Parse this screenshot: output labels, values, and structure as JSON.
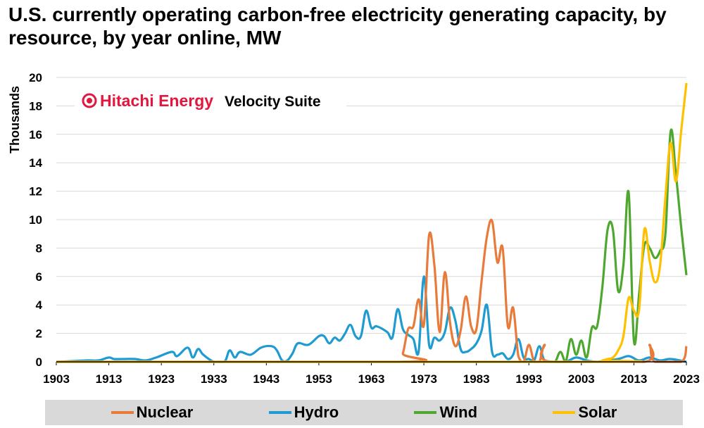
{
  "title": "U.S. currently operating carbon-free electricity generating capacity, by resource, by year online, MW",
  "brand": {
    "name": "Hitachi Energy",
    "product": "Velocity Suite",
    "brand_color": "#e3173e"
  },
  "chart_data": {
    "type": "line",
    "title": "U.S. currently operating carbon-free electricity generating capacity, by resource, by year online, MW",
    "ylabel": "Thousands",
    "xlabel": "",
    "xlim": [
      1903,
      2023
    ],
    "ylim": [
      0,
      20
    ],
    "x_ticks": [
      1903,
      1913,
      1923,
      1933,
      1943,
      1953,
      1963,
      1973,
      1983,
      1993,
      2003,
      2013,
      2023
    ],
    "y_ticks": [
      0,
      2,
      4,
      6,
      8,
      10,
      12,
      14,
      16,
      18,
      20
    ],
    "grid": "horizontal",
    "legend_position": "bottom",
    "series": [
      {
        "name": "Nuclear",
        "color": "#e87a3a",
        "points": [
          [
            1903,
            0
          ],
          [
            1968,
            0
          ],
          [
            1969,
            0.6
          ],
          [
            1970,
            2.3
          ],
          [
            1971,
            2.5
          ],
          [
            1972,
            4.4
          ],
          [
            1973,
            2.6
          ],
          [
            1974,
            8.9
          ],
          [
            1975,
            6.8
          ],
          [
            1976,
            2.1
          ],
          [
            1977,
            6.3
          ],
          [
            1978,
            2.7
          ],
          [
            1979,
            1.1
          ],
          [
            1980,
            2.2
          ],
          [
            1981,
            4.6
          ],
          [
            1982,
            2.5
          ],
          [
            1983,
            2.3
          ],
          [
            1984,
            5.7
          ],
          [
            1985,
            8.8
          ],
          [
            1986,
            9.9
          ],
          [
            1987,
            7.0
          ],
          [
            1988,
            8.0
          ],
          [
            1989,
            2.5
          ],
          [
            1990,
            3.8
          ],
          [
            1991,
            0.4
          ],
          [
            1992,
            0
          ],
          [
            1993,
            1.2
          ],
          [
            1994,
            0
          ],
          [
            1995,
            0
          ],
          [
            1996,
            1.2
          ],
          [
            1997,
            0
          ],
          [
            2015,
            0
          ],
          [
            2016,
            1.2
          ],
          [
            2017,
            0
          ],
          [
            2022,
            0
          ],
          [
            2023,
            1.1
          ]
        ]
      },
      {
        "name": "Hydro",
        "color": "#1f9bd1",
        "points": [
          [
            1903,
            0
          ],
          [
            1906,
            0.05
          ],
          [
            1909,
            0.1
          ],
          [
            1911,
            0.1
          ],
          [
            1913,
            0.3
          ],
          [
            1914,
            0.2
          ],
          [
            1916,
            0.2
          ],
          [
            1918,
            0.2
          ],
          [
            1920,
            0.1
          ],
          [
            1922,
            0.3
          ],
          [
            1925,
            0.7
          ],
          [
            1926,
            0.4
          ],
          [
            1928,
            1.0
          ],
          [
            1929,
            0.3
          ],
          [
            1930,
            0.9
          ],
          [
            1931,
            0.5
          ],
          [
            1933,
            0
          ],
          [
            1935,
            0
          ],
          [
            1936,
            0.8
          ],
          [
            1937,
            0.3
          ],
          [
            1938,
            0.7
          ],
          [
            1940,
            0.5
          ],
          [
            1942,
            1.0
          ],
          [
            1944,
            1.1
          ],
          [
            1945,
            0.8
          ],
          [
            1946,
            0.1
          ],
          [
            1947,
            0.1
          ],
          [
            1948,
            0.6
          ],
          [
            1949,
            1.3
          ],
          [
            1951,
            1.2
          ],
          [
            1953,
            1.8
          ],
          [
            1954,
            1.8
          ],
          [
            1955,
            1.3
          ],
          [
            1956,
            1.7
          ],
          [
            1957,
            1.5
          ],
          [
            1958,
            2.0
          ],
          [
            1959,
            2.6
          ],
          [
            1960,
            1.8
          ],
          [
            1961,
            1.8
          ],
          [
            1962,
            3.6
          ],
          [
            1963,
            2.4
          ],
          [
            1964,
            2.5
          ],
          [
            1966,
            2.1
          ],
          [
            1967,
            1.7
          ],
          [
            1968,
            3.7
          ],
          [
            1969,
            2.3
          ],
          [
            1970,
            1.9
          ],
          [
            1971,
            1.6
          ],
          [
            1972,
            0.7
          ],
          [
            1973,
            6.0
          ],
          [
            1974,
            1.2
          ],
          [
            1975,
            1.7
          ],
          [
            1976,
            1.5
          ],
          [
            1977,
            2.1
          ],
          [
            1978,
            3.8
          ],
          [
            1979,
            2.9
          ],
          [
            1980,
            0.9
          ],
          [
            1981,
            0.7
          ],
          [
            1982,
            0.9
          ],
          [
            1983,
            1.3
          ],
          [
            1984,
            2.2
          ],
          [
            1985,
            4.0
          ],
          [
            1986,
            0.7
          ],
          [
            1987,
            0.5
          ],
          [
            1988,
            0.6
          ],
          [
            1989,
            0.2
          ],
          [
            1990,
            0.5
          ],
          [
            1991,
            1.6
          ],
          [
            1992,
            0.3
          ],
          [
            1993,
            0.2
          ],
          [
            1994,
            0.1
          ],
          [
            1995,
            1.1
          ],
          [
            1996,
            0.1
          ],
          [
            1998,
            0
          ],
          [
            2000,
            0
          ],
          [
            2002,
            0.3
          ],
          [
            2004,
            0.1
          ],
          [
            2006,
            0
          ],
          [
            2010,
            0.2
          ],
          [
            2012,
            0.4
          ],
          [
            2014,
            0.1
          ],
          [
            2016,
            0.3
          ],
          [
            2018,
            0.1
          ],
          [
            2020,
            0.2
          ],
          [
            2023,
            0
          ]
        ]
      },
      {
        "name": "Wind",
        "color": "#4ea72e",
        "points": [
          [
            1903,
            0
          ],
          [
            1997,
            0
          ],
          [
            1998,
            0
          ],
          [
            1999,
            0.7
          ],
          [
            2000,
            0
          ],
          [
            2001,
            1.6
          ],
          [
            2002,
            0.5
          ],
          [
            2003,
            1.5
          ],
          [
            2004,
            0.3
          ],
          [
            2005,
            2.4
          ],
          [
            2006,
            2.5
          ],
          [
            2007,
            5.3
          ],
          [
            2008,
            9.3
          ],
          [
            2009,
            9.3
          ],
          [
            2010,
            5.0
          ],
          [
            2011,
            6.8
          ],
          [
            2012,
            11.9
          ],
          [
            2013,
            1.5
          ],
          [
            2014,
            4.8
          ],
          [
            2015,
            8.2
          ],
          [
            2016,
            8.0
          ],
          [
            2017,
            7.3
          ],
          [
            2018,
            7.8
          ],
          [
            2019,
            9.0
          ],
          [
            2020,
            16.2
          ],
          [
            2021,
            13.2
          ],
          [
            2022,
            9.5
          ],
          [
            2023,
            6.1
          ]
        ]
      },
      {
        "name": "Solar",
        "color": "#ffc000",
        "points": [
          [
            1903,
            0
          ],
          [
            2006,
            0
          ],
          [
            2007,
            0.1
          ],
          [
            2008,
            0.2
          ],
          [
            2009,
            0.3
          ],
          [
            2010,
            0.8
          ],
          [
            2011,
            1.8
          ],
          [
            2012,
            4.5
          ],
          [
            2013,
            3.6
          ],
          [
            2014,
            3.7
          ],
          [
            2015,
            9.3
          ],
          [
            2016,
            7.1
          ],
          [
            2017,
            5.6
          ],
          [
            2018,
            6.8
          ],
          [
            2019,
            11.6
          ],
          [
            2020,
            15.4
          ],
          [
            2021,
            12.7
          ],
          [
            2022,
            16.2
          ],
          [
            2023,
            19.6
          ]
        ]
      }
    ]
  }
}
